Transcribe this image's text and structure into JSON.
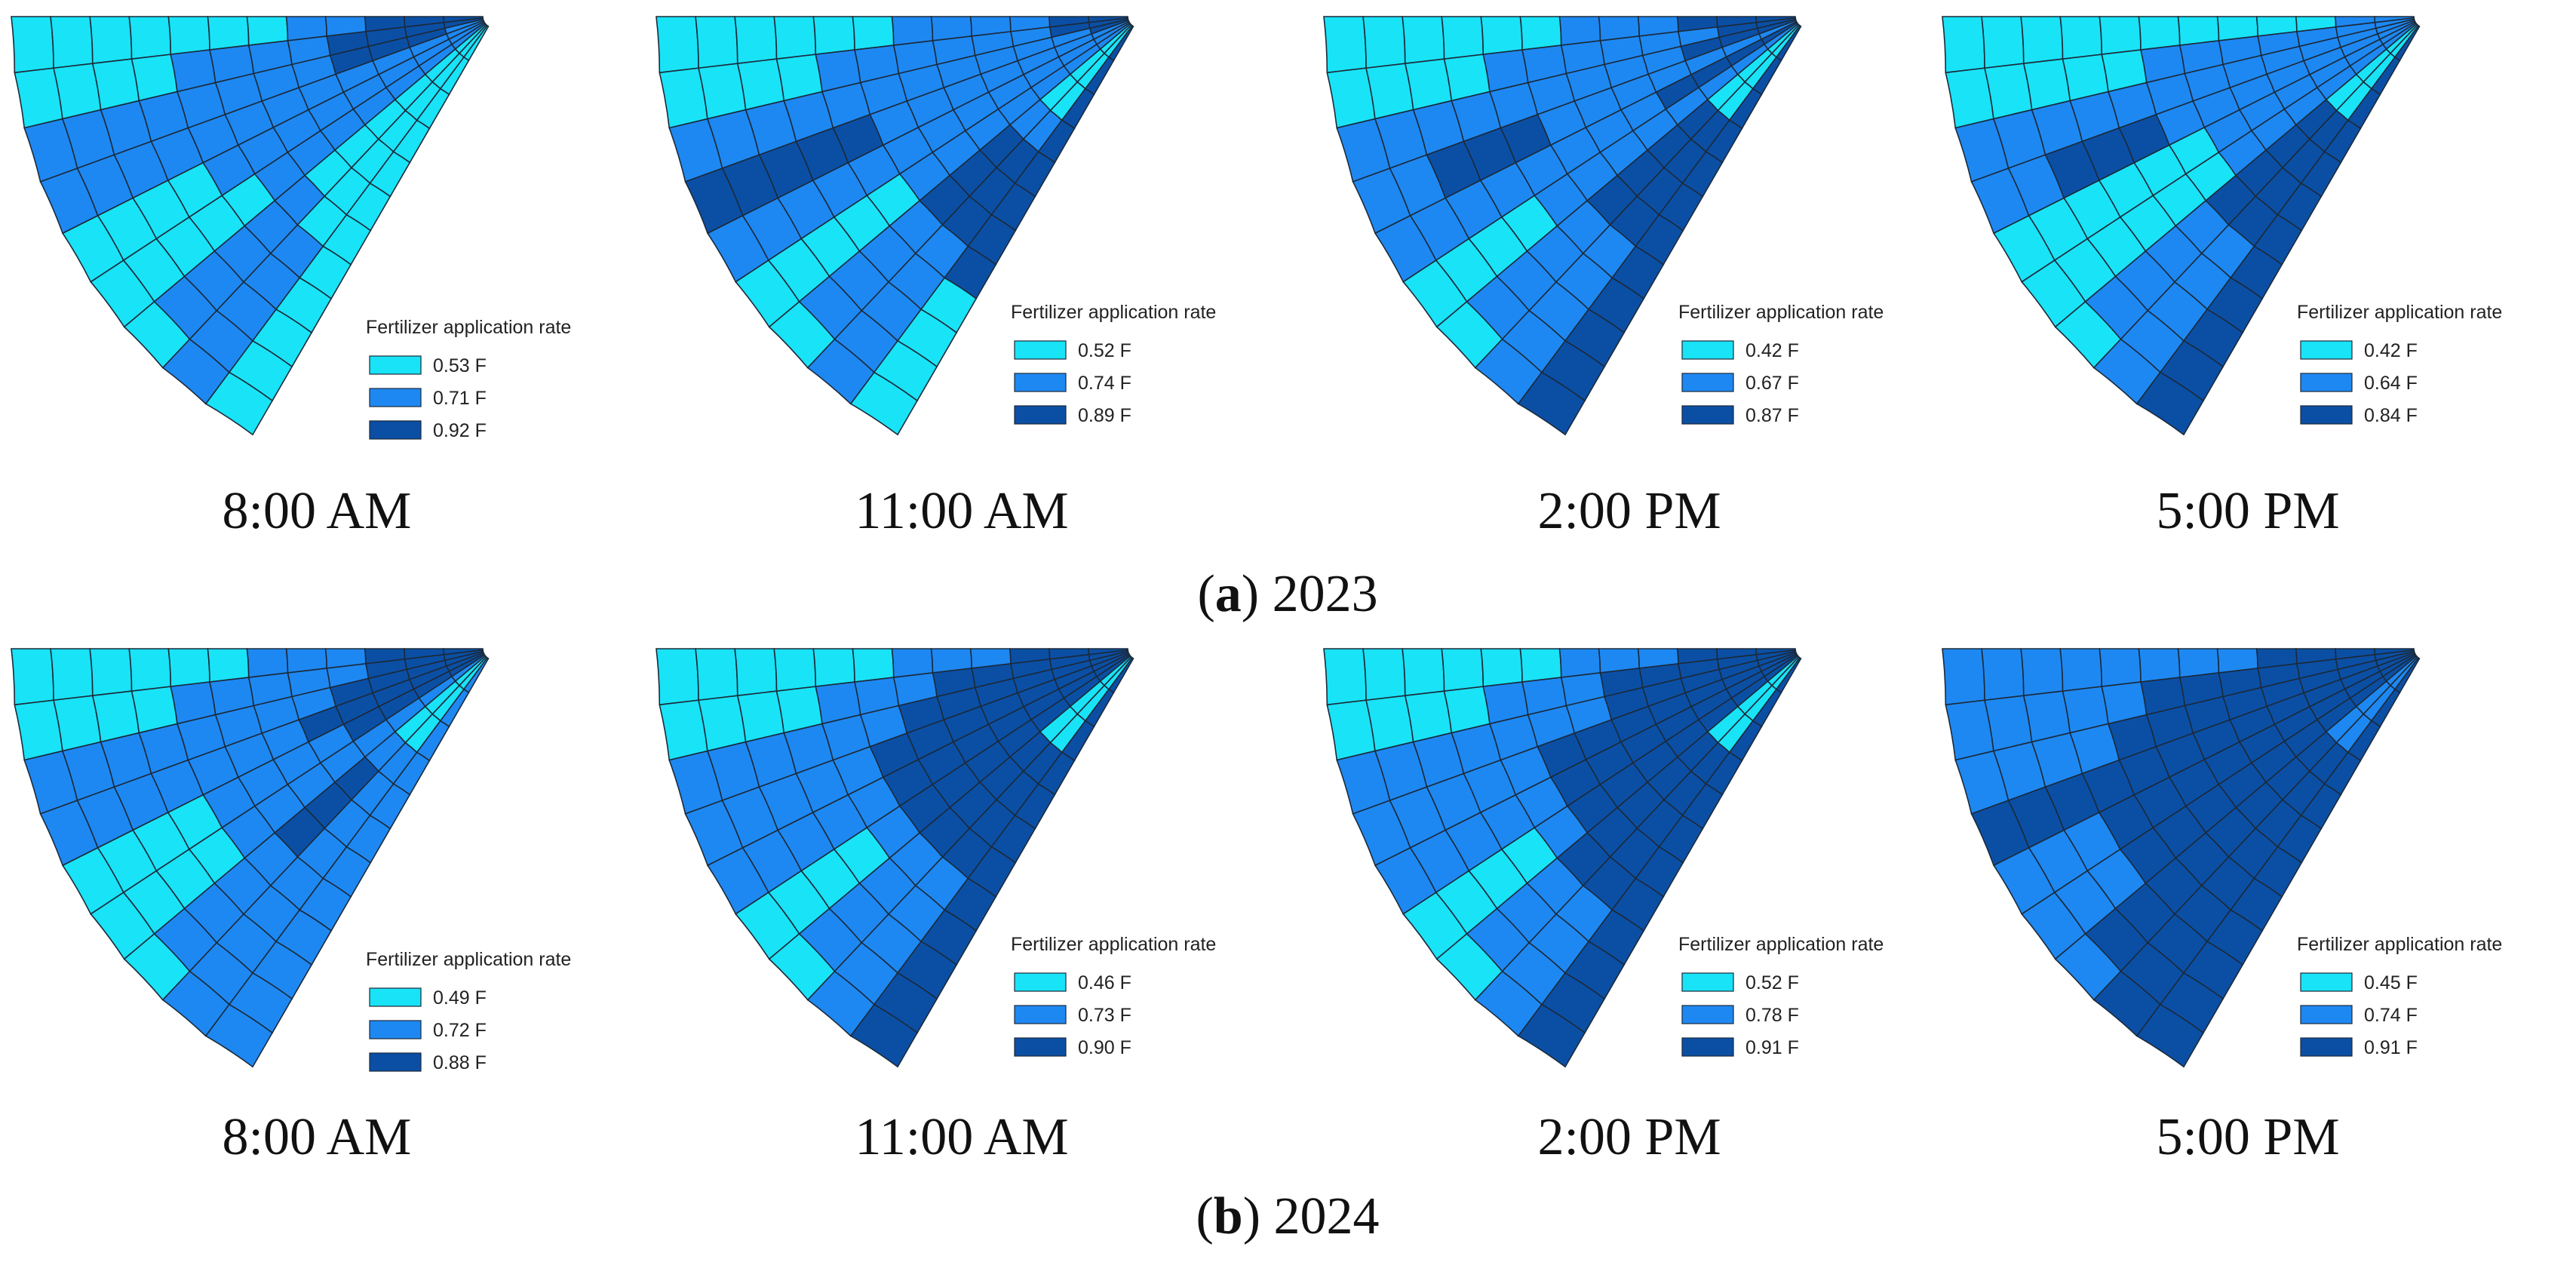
{
  "chart_data": [
    {
      "type": "heatmap",
      "row": "(a) 2023",
      "title": "8:00 AM",
      "legend_title": "Fertilizer application rate",
      "legend": [
        {
          "label": "0.53 F",
          "color": "#19e3f7"
        },
        {
          "label": "0.71 F",
          "color": "#1e88f2"
        },
        {
          "label": "0.92 F",
          "color": "#0b4fa5"
        }
      ],
      "grid": [
        "000000011222",
        "000011112222",
        "111111112221",
        "111111111111",
        "000011111111",
        "000001111111",
        "011111000000",
        "111110000000",
        "000000000000"
      ]
    },
    {
      "type": "heatmap",
      "row": "(a) 2023",
      "title": "11:00 AM",
      "legend_title": "Fertilizer application rate",
      "legend": [
        {
          "label": "0.52 F",
          "color": "#19e3f7"
        },
        {
          "label": "0.74 F",
          "color": "#1e88f2"
        },
        {
          "label": "0.89 F",
          "color": "#0b4fa5"
        }
      ],
      "grid": [
        "000000111122",
        "000011111122",
        "111111111112",
        "222221111111",
        "111111111111",
        "000001111111",
        "011112221000",
        "111112221000",
        "000022222222"
      ]
    },
    {
      "type": "heatmap",
      "row": "(a) 2023",
      "title": "2:00 PM",
      "legend_title": "Fertilizer application rate",
      "legend": [
        {
          "label": "0.42 F",
          "color": "#19e3f7"
        },
        {
          "label": "0.67 F",
          "color": "#1e88f2"
        },
        {
          "label": "0.87 F",
          "color": "#0b4fa5"
        }
      ],
      "grid": [
        "000000111222",
        "000011111122",
        "111111111222",
        "112221111111",
        "111111112222",
        "000011111111",
        "011112222000",
        "111112222000",
        "222222222222"
      ]
    },
    {
      "type": "heatmap",
      "row": "(a) 2023",
      "title": "5:00 PM",
      "legend_title": "Fertilizer application rate",
      "legend": [
        {
          "label": "0.42 F",
          "color": "#19e3f7"
        },
        {
          "label": "0.64 F",
          "color": "#1e88f2"
        },
        {
          "label": "0.84 F",
          "color": "#0b4fa5"
        }
      ],
      "grid": [
        "000000000011",
        "000001111111",
        "111111111111",
        "112221111111",
        "000000111111",
        "000000111111",
        "011112222000",
        "111112222000",
        "222222222222"
      ]
    },
    {
      "type": "heatmap",
      "row": "(b) 2024",
      "title": "8:00 AM",
      "legend_title": "Fertilizer application rate",
      "legend": [
        {
          "label": "0.49 F",
          "color": "#19e3f7"
        },
        {
          "label": "0.72 F",
          "color": "#1e88f2"
        },
        {
          "label": "0.88 F",
          "color": "#0b4fa5"
        }
      ],
      "grid": [
        "000000111222",
        "000011111222",
        "111111112222",
        "111111122222",
        "000011112222",
        "000011111111",
        "011112221000",
        "111111111000",
        "111111111111"
      ]
    },
    {
      "type": "heatmap",
      "row": "(b) 2024",
      "title": "11:00 AM",
      "legend_title": "Fertilizer application rate",
      "legend": [
        {
          "label": "0.46 F",
          "color": "#19e3f7"
        },
        {
          "label": "0.73 F",
          "color": "#1e88f2"
        },
        {
          "label": "0.90 F",
          "color": "#0b4fa5"
        }
      ],
      "grid": [
        "000000111222",
        "000011122222",
        "111111222222",
        "111112222222",
        "111112222222",
        "000012222222",
        "011112222000",
        "111112222000",
        "222222222222"
      ]
    },
    {
      "type": "heatmap",
      "row": "(b) 2024",
      "title": "2:00 PM",
      "legend_title": "Fertilizer application rate",
      "legend": [
        {
          "label": "0.52 F",
          "color": "#19e3f7"
        },
        {
          "label": "0.78 F",
          "color": "#1e88f2"
        },
        {
          "label": "0.91 F",
          "color": "#0b4fa5"
        }
      ],
      "grid": [
        "000000111222",
        "000011122222",
        "111111122222",
        "111112222222",
        "111112222222",
        "000012222222",
        "011122222000",
        "111122222000",
        "222222222222"
      ]
    },
    {
      "type": "heatmap",
      "row": "(b) 2024",
      "title": "5:00 PM",
      "legend_title": "Fertilizer application rate",
      "legend": [
        {
          "label": "0.45 F",
          "color": "#19e3f7"
        },
        {
          "label": "0.74 F",
          "color": "#1e88f2"
        },
        {
          "label": "0.91 F",
          "color": "#0b4fa5"
        }
      ],
      "grid": [
        "111111112222",
        "111112222222",
        "111122222222",
        "222222222222",
        "111222222222",
        "111222222222",
        "122222222111",
        "222222222111",
        "222222222222"
      ]
    }
  ],
  "row_labels": [
    {
      "bold": "a",
      "text": " 2023"
    },
    {
      "bold": "b",
      "text": " 2024"
    }
  ]
}
